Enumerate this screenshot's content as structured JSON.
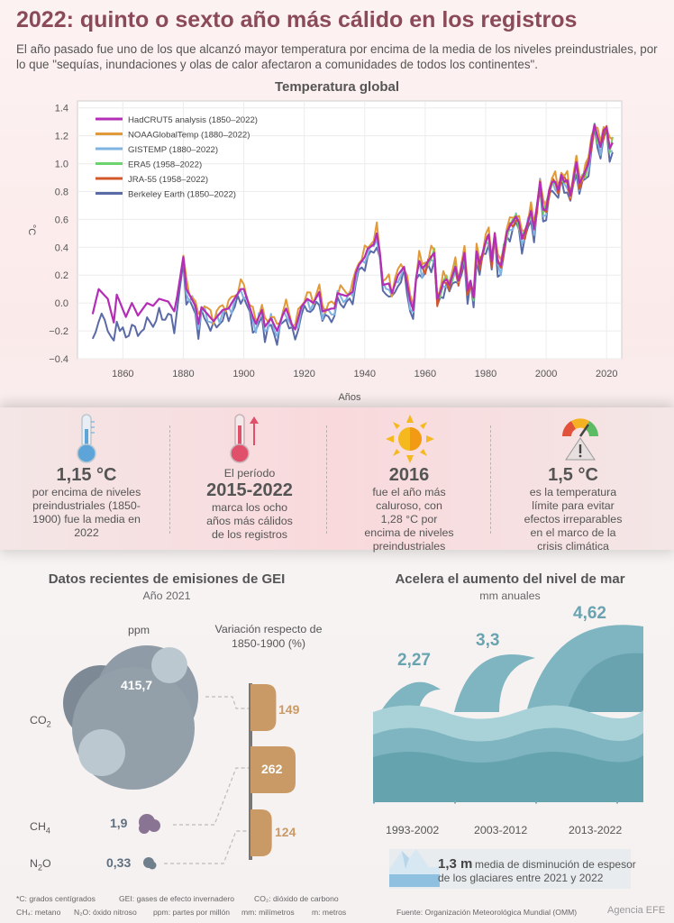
{
  "header": {
    "title": "2022: quinto o sexto año más cálido en los registros",
    "subtitle": "El año pasado fue uno de los que alcanzó mayor temperatura por encima de la media de los niveles preindustriales, por lo que \"sequías, inundaciones y olas de calor afectaron a comunidades de todos los continentes\"."
  },
  "chart_data": {
    "type": "line",
    "title": "Temperatura global",
    "xlabel": "Años",
    "ylabel": "°C",
    "xlim": [
      1845,
      2025
    ],
    "ylim": [
      -0.4,
      1.45
    ],
    "x_ticks": [
      "1860",
      "1880",
      "1900",
      "1920",
      "1940",
      "1960",
      "1980",
      "2000",
      "2020"
    ],
    "y_ticks": [
      "−0.4",
      "−0.2",
      "0.0",
      "0.2",
      "0.4",
      "0.6",
      "0.8",
      "1.0",
      "1.2",
      "1.4"
    ],
    "legend_placement": "top-left",
    "grid": true,
    "keyframes": [
      [
        1850,
        -0.08
      ],
      [
        1852,
        0.1
      ],
      [
        1855,
        0.03
      ],
      [
        1857,
        -0.14
      ],
      [
        1858,
        0.06
      ],
      [
        1861,
        -0.1
      ],
      [
        1863,
        0.0
      ],
      [
        1865,
        -0.09
      ],
      [
        1868,
        0.0
      ],
      [
        1870,
        -0.02
      ],
      [
        1872,
        0.03
      ],
      [
        1875,
        0.01
      ],
      [
        1877,
        -0.06
      ],
      [
        1878,
        0.05
      ],
      [
        1880,
        0.33
      ],
      [
        1881,
        0.1
      ],
      [
        1884,
        -0.02
      ],
      [
        1885,
        -0.15
      ],
      [
        1886,
        -0.03
      ],
      [
        1888,
        -0.08
      ],
      [
        1890,
        -0.13
      ],
      [
        1893,
        -0.05
      ],
      [
        1895,
        -0.04
      ],
      [
        1896,
        0.0
      ],
      [
        1899,
        0.1
      ],
      [
        1900,
        0.1
      ],
      [
        1903,
        -0.1
      ],
      [
        1904,
        -0.15
      ],
      [
        1906,
        -0.05
      ],
      [
        1907,
        -0.17
      ],
      [
        1909,
        -0.11
      ],
      [
        1911,
        -0.2
      ],
      [
        1913,
        -0.08
      ],
      [
        1914,
        -0.04
      ],
      [
        1916,
        -0.16
      ],
      [
        1917,
        -0.19
      ],
      [
        1919,
        -0.03
      ],
      [
        1921,
        0.03
      ],
      [
        1923,
        0.0
      ],
      [
        1925,
        0.08
      ],
      [
        1926,
        -0.06
      ],
      [
        1929,
        -0.04
      ],
      [
        1930,
        -0.04
      ],
      [
        1931,
        0.07
      ],
      [
        1934,
        0.05
      ],
      [
        1936,
        0.08
      ],
      [
        1937,
        0.21
      ],
      [
        1938,
        0.27
      ],
      [
        1940,
        0.33
      ],
      [
        1941,
        0.39
      ],
      [
        1943,
        0.42
      ],
      [
        1944,
        0.5
      ],
      [
        1945,
        0.36
      ],
      [
        1946,
        0.13
      ],
      [
        1948,
        0.14
      ],
      [
        1949,
        0.07
      ],
      [
        1951,
        0.2
      ],
      [
        1953,
        0.26
      ],
      [
        1955,
        0.02
      ],
      [
        1956,
        -0.05
      ],
      [
        1957,
        0.18
      ],
      [
        1958,
        0.3
      ],
      [
        1959,
        0.25
      ],
      [
        1960,
        0.27
      ],
      [
        1962,
        0.33
      ],
      [
        1963,
        0.36
      ],
      [
        1964,
        0.03
      ],
      [
        1965,
        0.08
      ],
      [
        1966,
        0.15
      ],
      [
        1967,
        0.17
      ],
      [
        1968,
        0.13
      ],
      [
        1970,
        0.26
      ],
      [
        1971,
        0.16
      ],
      [
        1973,
        0.36
      ],
      [
        1974,
        0.09
      ],
      [
        1975,
        0.16
      ],
      [
        1976,
        0.04
      ],
      [
        1977,
        0.37
      ],
      [
        1978,
        0.28
      ],
      [
        1980,
        0.44
      ],
      [
        1981,
        0.49
      ],
      [
        1982,
        0.3
      ],
      [
        1983,
        0.5
      ],
      [
        1984,
        0.29
      ],
      [
        1985,
        0.27
      ],
      [
        1987,
        0.51
      ],
      [
        1988,
        0.55
      ],
      [
        1990,
        0.62
      ],
      [
        1991,
        0.58
      ],
      [
        1992,
        0.46
      ],
      [
        1993,
        0.51
      ],
      [
        1995,
        0.66
      ],
      [
        1996,
        0.53
      ],
      [
        1998,
        0.87
      ],
      [
        1999,
        0.67
      ],
      [
        2000,
        0.67
      ],
      [
        2001,
        0.81
      ],
      [
        2002,
        0.87
      ],
      [
        2003,
        0.87
      ],
      [
        2004,
        0.81
      ],
      [
        2005,
        0.92
      ],
      [
        2006,
        0.87
      ],
      [
        2007,
        0.88
      ],
      [
        2008,
        0.77
      ],
      [
        2009,
        0.89
      ],
      [
        2010,
        1.01
      ],
      [
        2011,
        0.86
      ],
      [
        2012,
        0.9
      ],
      [
        2013,
        0.95
      ],
      [
        2014,
        1.0
      ],
      [
        2015,
        1.16
      ],
      [
        2016,
        1.28
      ],
      [
        2017,
        1.19
      ],
      [
        2018,
        1.12
      ],
      [
        2019,
        1.24
      ],
      [
        2020,
        1.26
      ],
      [
        2021,
        1.11
      ],
      [
        2022,
        1.15
      ]
    ],
    "series": [
      {
        "name": "HadCRUT5 analysis (1850–2022)",
        "color": "#b32db5",
        "start": 1850,
        "offset": 0.0
      },
      {
        "name": "NOAAGlobalTemp (1880–2022)",
        "color": "#e09a3a",
        "start": 1880,
        "offset": 0.03
      },
      {
        "name": "GISTEMP (1880–2022)",
        "color": "#7fb3e0",
        "start": 1880,
        "offset": -0.02
      },
      {
        "name": "ERA5 (1958–2022)",
        "color": "#6ed36e",
        "start": 1958,
        "offset": 0.0
      },
      {
        "name": "JRA-55 (1958–2022)",
        "color": "#d2572a",
        "start": 1958,
        "offset": -0.01
      },
      {
        "name": "Berkeley Earth (1850–2022)",
        "color": "#5a6aa6",
        "start": 1850,
        "offset": -0.06
      }
    ]
  },
  "stats": [
    {
      "pre": "",
      "big": "1,15 °C",
      "post": "por encima de niveles preindustriales (1850-1900) fue la media en 2022",
      "icon": "thermometer-icon"
    },
    {
      "pre": "El período",
      "big": "2015-2022",
      "post": "marca los ocho años más cálidos de los registros",
      "icon": "thermometer-up-icon"
    },
    {
      "pre": "",
      "big": "2016",
      "post": "fue el año más caluroso, con 1,28 °C por encima de niveles preindustriales",
      "icon": "sun-icon"
    },
    {
      "pre": "",
      "big": "1,5 °C",
      "post": "es la temperatura límite para evitar efectos irreparables en el marco de la crisis climática",
      "icon": "gauge-warning-icon"
    }
  ],
  "emissions": {
    "title": "Datos recientes de emisiones de GEI",
    "subtitle": "Año 2021",
    "ppm_label": "ppm",
    "variation_label": "Variación respecto de 1850-1900 (%)",
    "gases": [
      {
        "name": "CO",
        "sub": "2",
        "ppm": "415,7",
        "variation": "149",
        "variation_value": 149
      },
      {
        "name": "CH",
        "sub": "4",
        "ppm": "1,9",
        "variation": "262",
        "variation_value": 262
      },
      {
        "name": "N",
        "sub": "2",
        "name_after": "O",
        "ppm": "0,33",
        "variation": "124",
        "variation_value": 124
      }
    ]
  },
  "sea": {
    "title": "Acelera el aumento del nivel de mar",
    "subtitle": "mm anuales",
    "periods": [
      {
        "label": "1993-2002",
        "value": "2,27"
      },
      {
        "label": "2003-2012",
        "value": "3,3"
      },
      {
        "label": "2013-2022",
        "value": "4,62"
      }
    ],
    "glacier_value": "1,3 m",
    "glacier_text_1": "media de disminución de espesor",
    "glacier_text_2": "de los glaciares entre 2021 y 2022"
  },
  "footer": {
    "notes_row1": [
      "*C: grados centígrados",
      "GEI: gases de efecto invernadero",
      "CO₂: dióxido de carbono"
    ],
    "notes_row2": [
      "CH₄: metano",
      "N₂O: óxido nitroso",
      "ppm: partes por millón",
      "mm: milímetros",
      "m: metros"
    ],
    "source": "Fuente: Organización Meteorológica Mundial (OMM)",
    "credit": "Agencia EFE"
  }
}
